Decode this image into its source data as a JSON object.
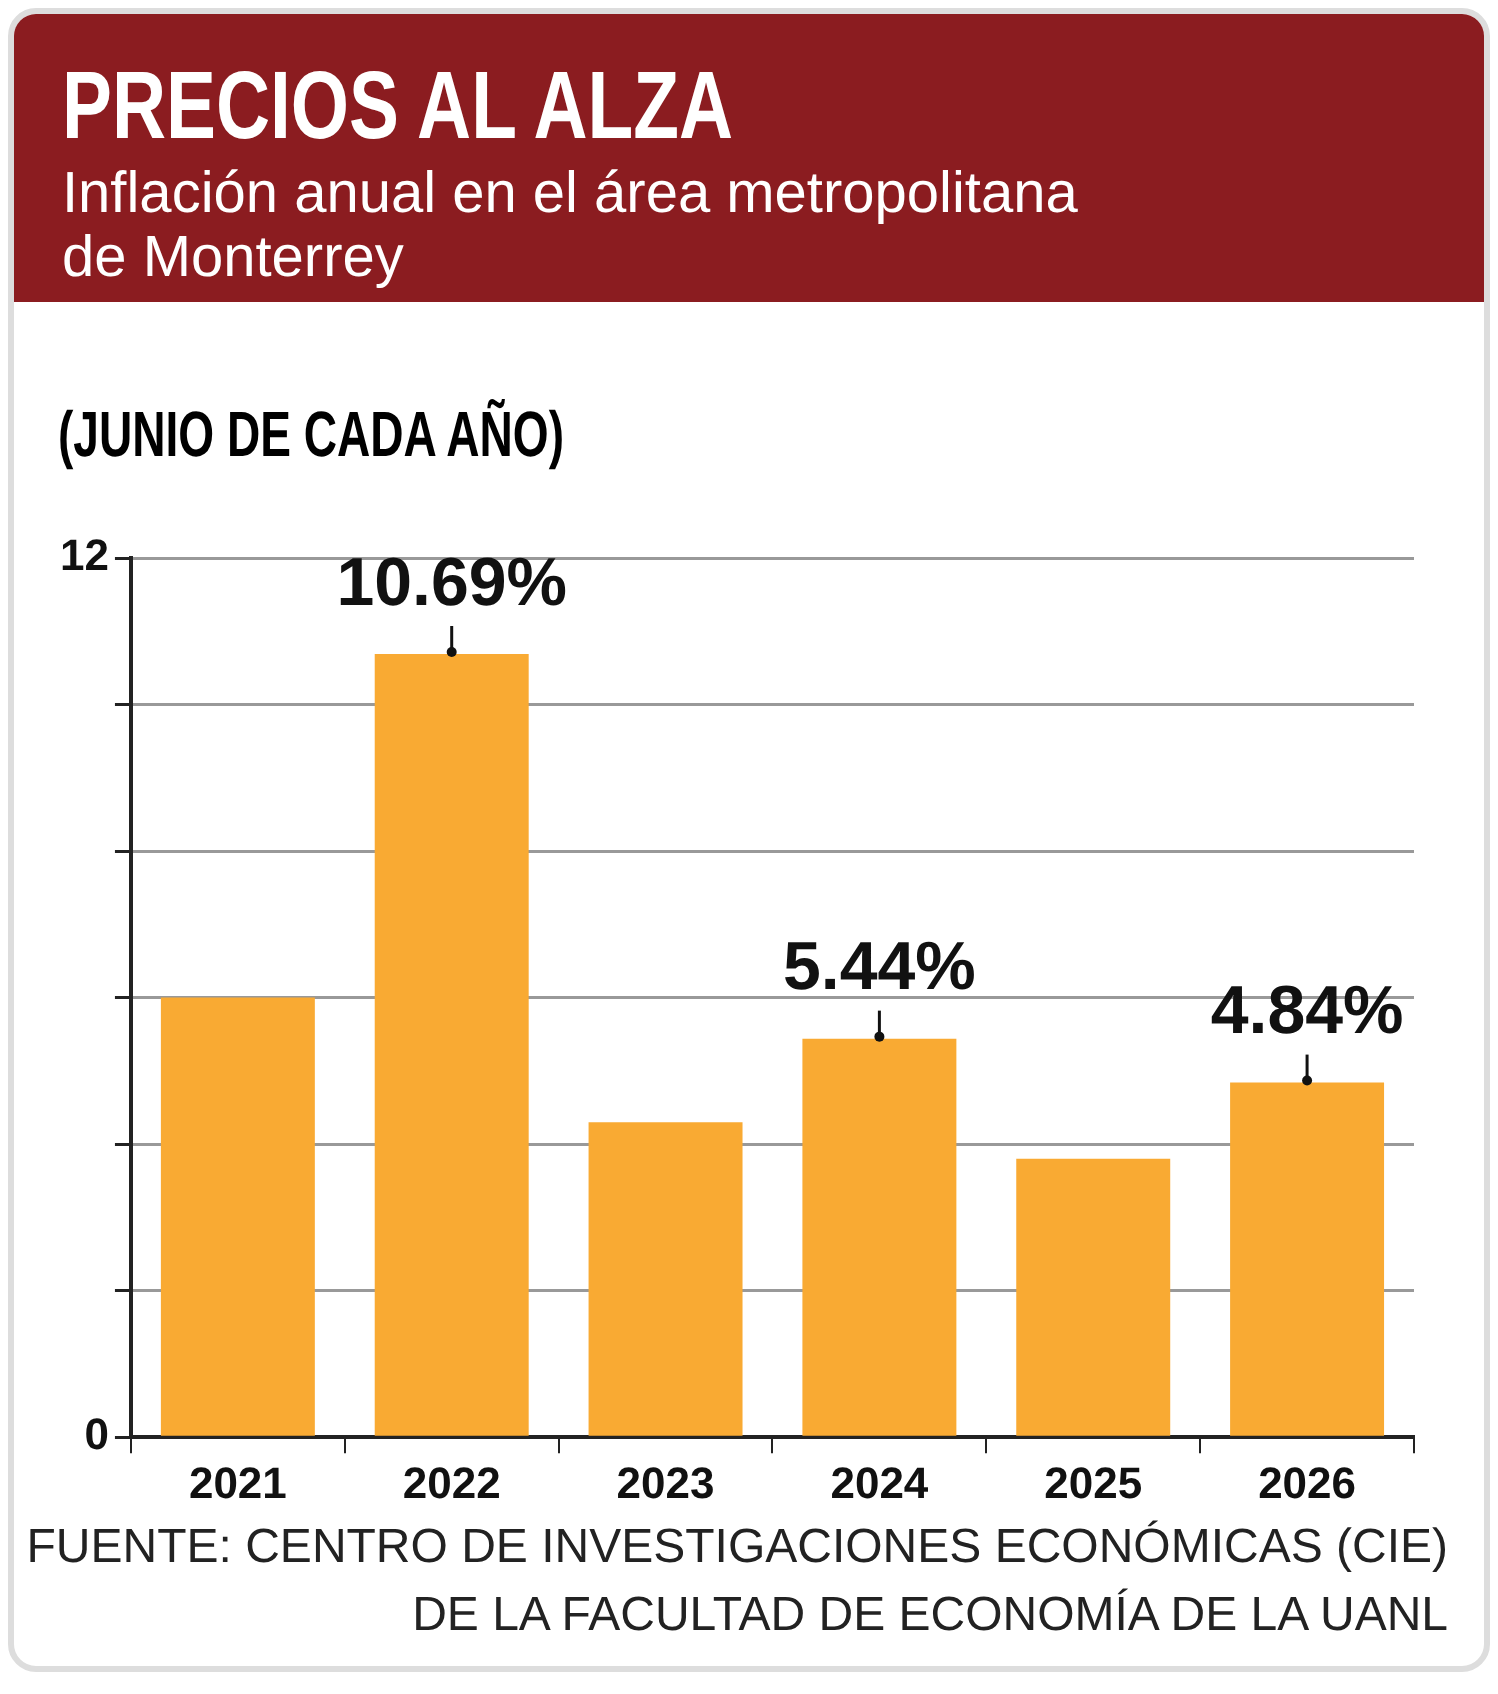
{
  "chart_data": {
    "type": "bar",
    "title": "PRECIOS AL ALZA",
    "subtitle": "Inflación anual en el área metropolitana de Monterrey",
    "ylabel": "(JUNIO DE CADA AÑO)",
    "categories": [
      "2021",
      "2022",
      "2023",
      "2024",
      "2025",
      "2026"
    ],
    "values": [
      6.0,
      10.69,
      4.3,
      5.44,
      3.8,
      4.84
    ],
    "value_labels": [
      null,
      "10.69%",
      null,
      "5.44%",
      null,
      "4.84%"
    ],
    "color": "#f9aa33",
    "ylim": [
      0,
      12
    ],
    "yticks": [
      0,
      {
        "value": 2,
        "label": null
      },
      {
        "value": 4,
        "label": null
      },
      {
        "value": 6,
        "label": null
      },
      {
        "value": 8,
        "label": null
      },
      {
        "value": 10,
        "label": null
      },
      12
    ],
    "grid": "y",
    "annotations": [
      "FUENTE: CENTRO DE INVESTIGACIONES ECONÓMICAS (CIE) DE LA FACULTAD DE ECONOMÍA DE LA UANL"
    ]
  }
}
